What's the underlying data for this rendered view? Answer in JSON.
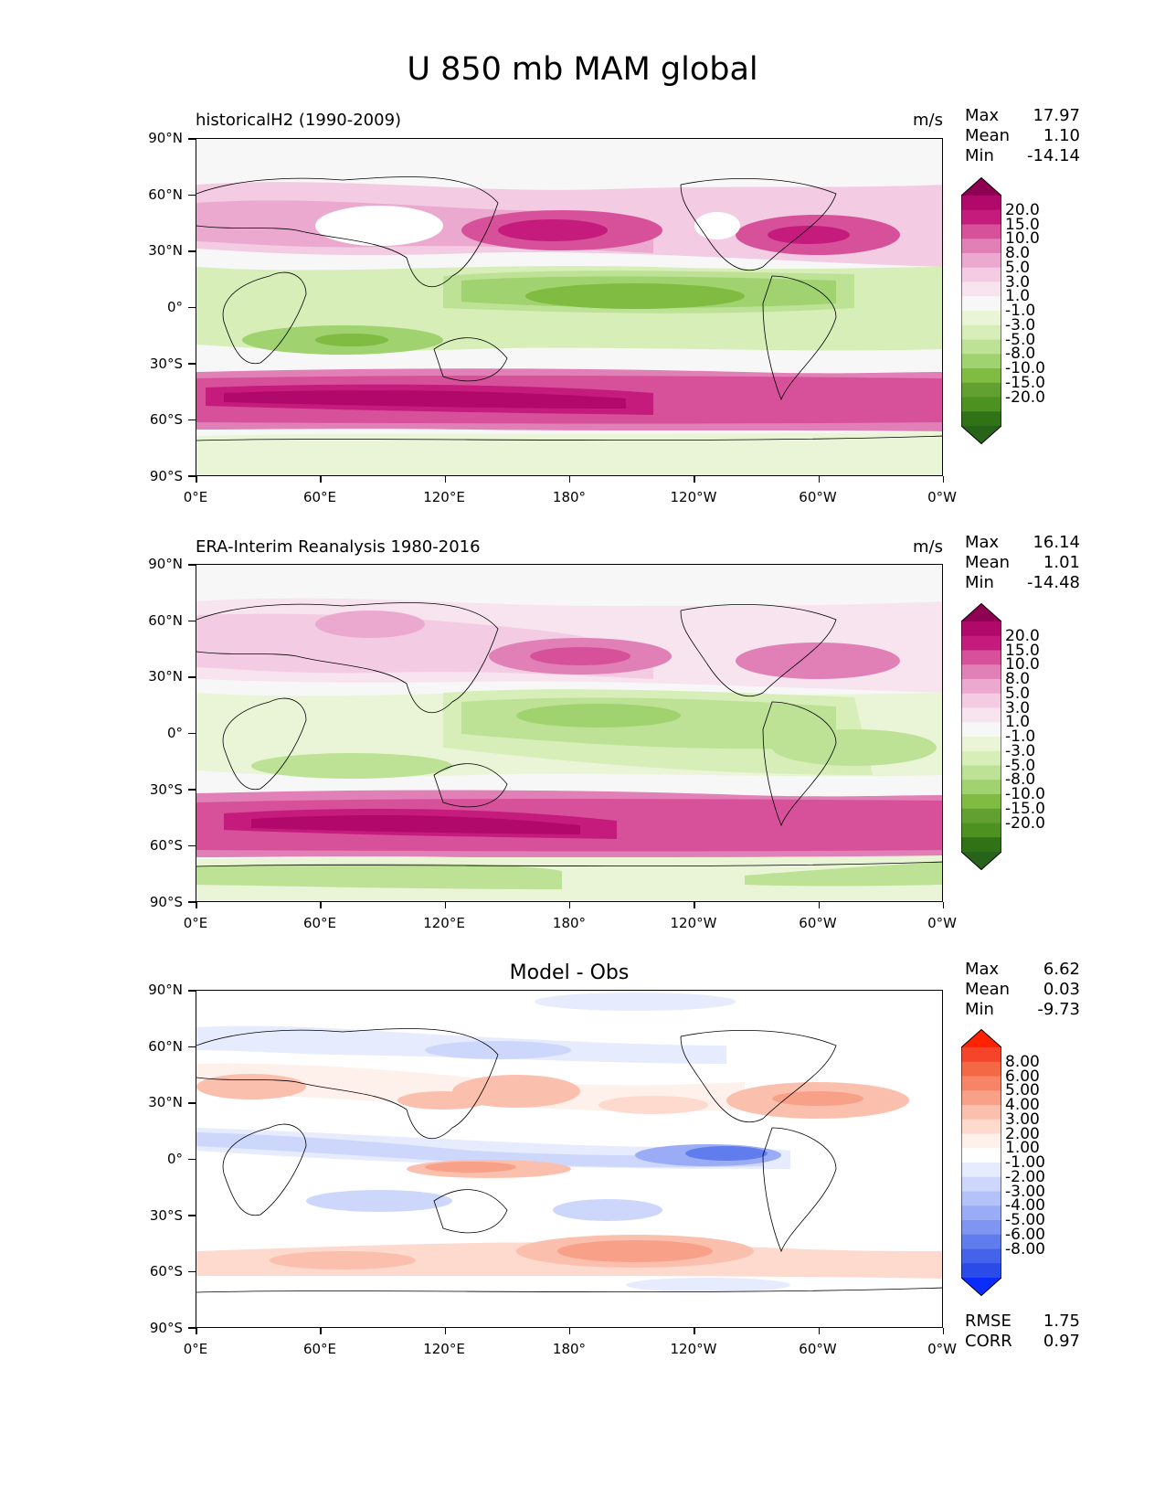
{
  "figure": {
    "title": "U 850 mb MAM global"
  },
  "axes": {
    "y_ticks": [
      "90°N",
      "60°N",
      "30°N",
      "0°",
      "30°S",
      "60°S",
      "90°S"
    ],
    "x_ticks": [
      "0°E",
      "60°E",
      "120°E",
      "180°",
      "120°W",
      "60°W",
      "0°W"
    ]
  },
  "panels": [
    {
      "title": "historicalH2 (1990-2009)",
      "units": "m/s",
      "stats": {
        "max_label": "Max",
        "max": "17.97",
        "mean_label": "Mean",
        "mean": "1.10",
        "min_label": "Min",
        "min": "-14.14"
      },
      "colorbar": {
        "labels": [
          "20.0",
          "15.0",
          "10.0",
          "8.0",
          "5.0",
          "3.0",
          "1.0",
          "-1.0",
          "-3.0",
          "-5.0",
          "-8.0",
          "-10.0",
          "-15.0",
          "-20.0"
        ],
        "colors": [
          "#8e0152",
          "#b1086b",
          "#c51b7d",
          "#d7519a",
          "#e17fb7",
          "#eba9d0",
          "#f3cbe3",
          "#f8e4ef",
          "#f7f7f7",
          "#eaf5d8",
          "#d7eeb9",
          "#bde295",
          "#a0d26f",
          "#7fbc41",
          "#62a131",
          "#4d9221",
          "#2f7316",
          "#276419"
        ]
      }
    },
    {
      "title": "ERA-Interim Reanalysis 1980-2016",
      "units": "m/s",
      "stats": {
        "max_label": "Max",
        "max": "16.14",
        "mean_label": "Mean",
        "mean": "1.01",
        "min_label": "Min",
        "min": "-14.48"
      },
      "colorbar": {
        "labels": [
          "20.0",
          "15.0",
          "10.0",
          "8.0",
          "5.0",
          "3.0",
          "1.0",
          "-1.0",
          "-3.0",
          "-5.0",
          "-8.0",
          "-10.0",
          "-15.0",
          "-20.0"
        ],
        "colors": [
          "#8e0152",
          "#b1086b",
          "#c51b7d",
          "#d7519a",
          "#e17fb7",
          "#eba9d0",
          "#f3cbe3",
          "#f8e4ef",
          "#f7f7f7",
          "#eaf5d8",
          "#d7eeb9",
          "#bde295",
          "#a0d26f",
          "#7fbc41",
          "#62a131",
          "#4d9221",
          "#2f7316",
          "#276419"
        ]
      }
    },
    {
      "title": "Model - Obs",
      "stats": {
        "max_label": "Max",
        "max": "6.62",
        "mean_label": "Mean",
        "mean": "0.03",
        "min_label": "Min",
        "min": "-9.73"
      },
      "colorbar": {
        "labels": [
          "8.00",
          "6.00",
          "5.00",
          "4.00",
          "3.00",
          "2.00",
          "1.00",
          "-1.00",
          "-2.00",
          "-3.00",
          "-4.00",
          "-5.00",
          "-6.00",
          "-8.00"
        ],
        "colors": [
          "#ff2200",
          "#f5442a",
          "#f56846",
          "#f78466",
          "#f9a088",
          "#fbbfad",
          "#fdd9ce",
          "#fef0ea",
          "#ffffff",
          "#e6ebfd",
          "#ccd7fb",
          "#b3c2f8",
          "#99acf5",
          "#7f95f1",
          "#617ced",
          "#4563ea",
          "#2b4be9",
          "#0a2cff"
        ]
      },
      "extra_stats": {
        "rmse_label": "RMSE",
        "rmse": "1.75",
        "corr_label": "CORR",
        "corr": "0.97"
      }
    }
  ]
}
